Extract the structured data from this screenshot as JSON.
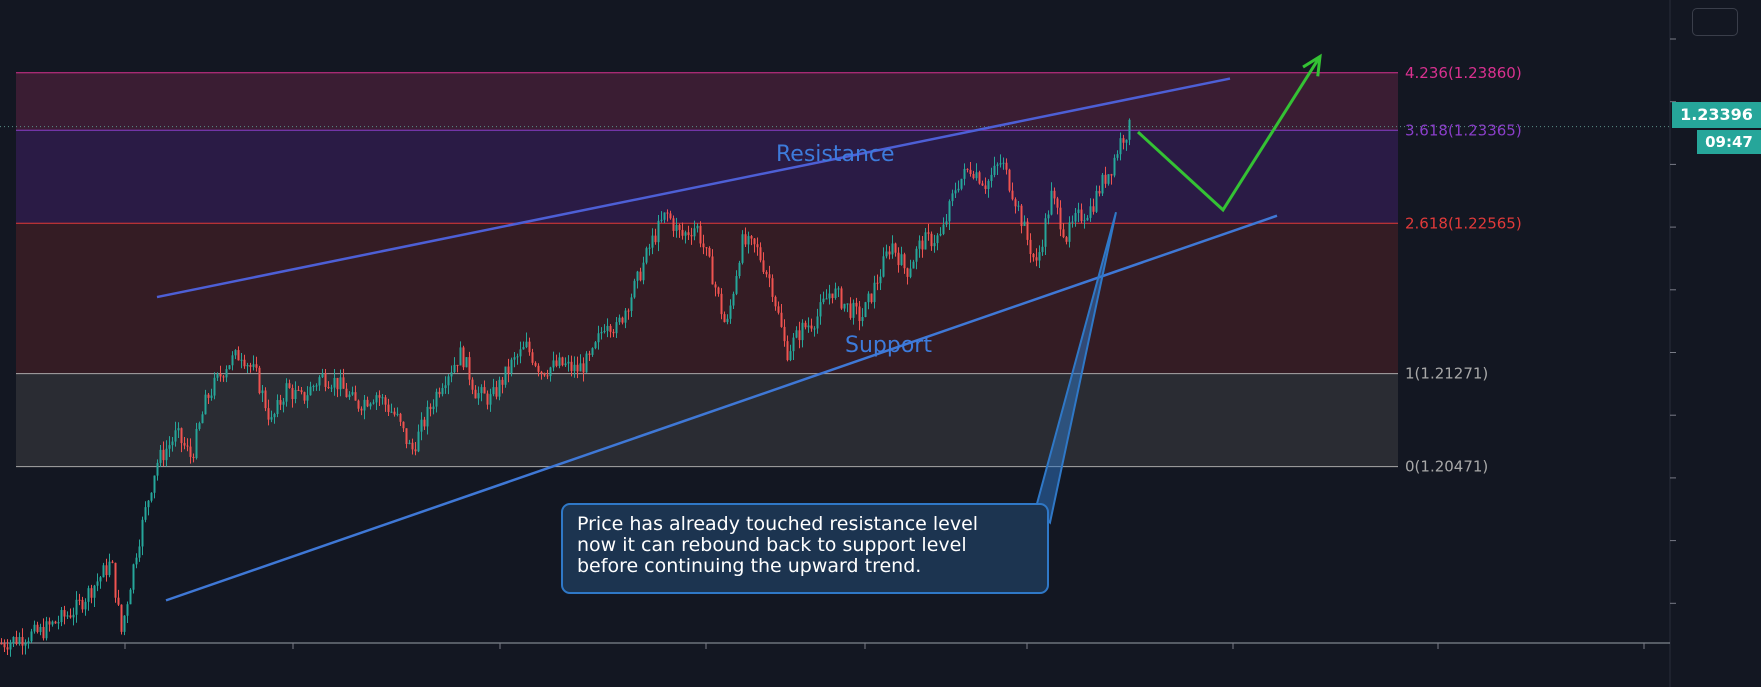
{
  "chart_data": {
    "type": "candlestick",
    "instrument_price_scale": "price",
    "ylim": [
      1.1885,
      1.244
    ],
    "fibonacci_levels": [
      {
        "ratio": 4.236,
        "price": 1.2386,
        "label": "4.236(1.23860)",
        "color": "#d8318f"
      },
      {
        "ratio": 3.618,
        "price": 1.23365,
        "label": "3.618(1.23365)",
        "color": "#8a3ec9"
      },
      {
        "ratio": 2.618,
        "price": 1.22565,
        "label": "2.618(1.22565)",
        "color": "#e03a3a"
      },
      {
        "ratio": 1,
        "price": 1.21271,
        "label": "1(1.21271)",
        "color": "#a8a8a8"
      },
      {
        "ratio": 0,
        "price": 1.20471,
        "label": "0(1.20471)",
        "color": "#a8a8a8"
      }
    ],
    "fib_zone_colors": [
      "#3a1d33",
      "#2a1b45",
      "#341c24",
      "#2a2c33"
    ],
    "current_price": 1.23396,
    "current_price_label": "1.23396",
    "countdown": "09:47",
    "annotations": {
      "resistance": "Resistance",
      "support": "Support",
      "callout": [
        "Price has already touched resistance level",
        "now it can rebound back to support level",
        "before continuing the upward trend."
      ]
    },
    "candle_path": [
      [
        0,
        1.1895
      ],
      [
        40,
        1.1905
      ],
      [
        75,
        1.1925
      ],
      [
        110,
        1.1965
      ],
      [
        120,
        1.1905
      ],
      [
        135,
        1.1975
      ],
      [
        155,
        1.205
      ],
      [
        175,
        1.2075
      ],
      [
        190,
        1.2055
      ],
      [
        205,
        1.2105
      ],
      [
        225,
        1.2135
      ],
      [
        240,
        1.2145
      ],
      [
        255,
        1.2125
      ],
      [
        270,
        1.2085
      ],
      [
        285,
        1.2115
      ],
      [
        300,
        1.2105
      ],
      [
        320,
        1.2125
      ],
      [
        335,
        1.212
      ],
      [
        355,
        1.21
      ],
      [
        375,
        1.211
      ],
      [
        395,
        1.209
      ],
      [
        410,
        1.206
      ],
      [
        425,
        1.209
      ],
      [
        440,
        1.212
      ],
      [
        460,
        1.2145
      ],
      [
        475,
        1.211
      ],
      [
        490,
        1.2105
      ],
      [
        510,
        1.2135
      ],
      [
        525,
        1.215
      ],
      [
        540,
        1.213
      ],
      [
        560,
        1.2135
      ],
      [
        575,
        1.213
      ],
      [
        590,
        1.214
      ],
      [
        605,
        1.2175
      ],
      [
        615,
        1.2165
      ],
      [
        635,
        1.2205
      ],
      [
        650,
        1.224
      ],
      [
        665,
        1.2265
      ],
      [
        680,
        1.2245
      ],
      [
        695,
        1.2255
      ],
      [
        710,
        1.2215
      ],
      [
        725,
        1.2165
      ],
      [
        740,
        1.224
      ],
      [
        755,
        1.2235
      ],
      [
        770,
        1.2205
      ],
      [
        785,
        1.2145
      ],
      [
        800,
        1.2165
      ],
      [
        815,
        1.2175
      ],
      [
        830,
        1.22
      ],
      [
        845,
        1.2185
      ],
      [
        860,
        1.2175
      ],
      [
        875,
        1.2205
      ],
      [
        890,
        1.224
      ],
      [
        905,
        1.2215
      ],
      [
        920,
        1.224
      ],
      [
        940,
        1.2245
      ],
      [
        955,
        1.229
      ],
      [
        970,
        1.2305
      ],
      [
        985,
        1.229
      ],
      [
        1000,
        1.231
      ],
      [
        1015,
        1.2275
      ],
      [
        1025,
        1.2245
      ],
      [
        1035,
        1.222
      ],
      [
        1050,
        1.228
      ],
      [
        1065,
        1.2245
      ],
      [
        1075,
        1.226
      ],
      [
        1090,
        1.227
      ],
      [
        1100,
        1.229
      ],
      [
        1110,
        1.2305
      ],
      [
        1120,
        1.233
      ],
      [
        1130,
        1.234
      ]
    ],
    "channel": {
      "upper": [
        [
          157,
          1.2193
        ],
        [
          1230,
          1.2381
        ]
      ],
      "lower": [
        [
          166,
          1.1932
        ],
        [
          1277,
          1.2263
        ]
      ]
    },
    "projection": [
      [
        1138,
        1.2335
      ],
      [
        1223,
        1.2268
      ],
      [
        1320,
        1.24
      ]
    ],
    "pointer": [
      [
        1116,
        1.2266
      ],
      [
        1036,
        1.2012
      ],
      [
        1050,
        1.1999
      ]
    ],
    "x_axis_ticks": 8,
    "colors": {
      "up": "#26a69a",
      "down": "#ef5350",
      "channel": "#4d5fd6",
      "channel_lower": "#3f78d6",
      "projection": "#34c234",
      "pointer": "#2f78c7"
    }
  }
}
